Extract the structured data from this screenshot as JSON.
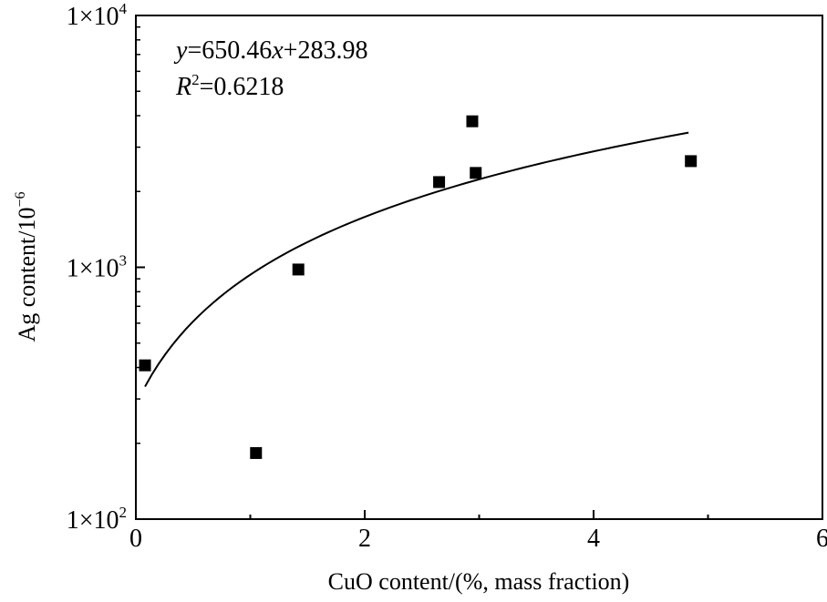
{
  "chart_data": {
    "type": "scatter",
    "title": "",
    "xlabel": "CuO content/(%, mass fraction)",
    "ylabel": {
      "base": "Ag content/10",
      "exponent": "−6"
    },
    "xlim": [
      0,
      6
    ],
    "ylim": [
      100,
      10000
    ],
    "y_scale": "log",
    "grid": false,
    "x_ticks": [
      {
        "value": 0,
        "label": "0"
      },
      {
        "value": 2,
        "label": "2"
      },
      {
        "value": 4,
        "label": "4"
      },
      {
        "value": 6,
        "label": "6"
      }
    ],
    "y_ticks": [
      {
        "value": 100,
        "mantissa": "1×10",
        "exponent": "2"
      },
      {
        "value": 1000,
        "mantissa": "1×10",
        "exponent": "3"
      },
      {
        "value": 10000,
        "mantissa": "1×10",
        "exponent": "4"
      }
    ],
    "points": [
      {
        "x": 0.08,
        "y": 408
      },
      {
        "x": 1.05,
        "y": 183
      },
      {
        "x": 1.42,
        "y": 980
      },
      {
        "x": 2.65,
        "y": 2180
      },
      {
        "x": 2.94,
        "y": 3800
      },
      {
        "x": 2.97,
        "y": 2370
      },
      {
        "x": 4.85,
        "y": 2640
      }
    ],
    "fit": {
      "type": "linear",
      "slope": 650.46,
      "intercept": 283.98,
      "x_range": [
        0.08,
        4.83
      ]
    },
    "annotation": {
      "equation": {
        "y_var": "y",
        "mid": "=650.46",
        "x_var": "x",
        "tail": "+283.98"
      },
      "r_squared": {
        "var": "R",
        "exp": "2",
        "value": "=0.6218"
      }
    },
    "colors": {
      "marker": "#000000",
      "line": "#000000",
      "axis": "#000000"
    }
  }
}
